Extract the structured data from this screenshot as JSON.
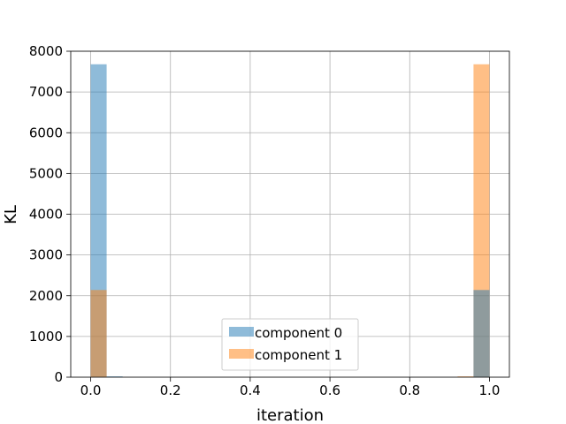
{
  "chart_data": {
    "type": "histogram",
    "title": "",
    "xlabel": "iteration",
    "ylabel": "KL",
    "xlim": [
      -0.05,
      1.05
    ],
    "ylim": [
      0,
      8000
    ],
    "xticks": [
      0.0,
      0.2,
      0.4,
      0.6,
      0.8,
      1.0
    ],
    "xtick_labels": [
      "0.0",
      "0.2",
      "0.4",
      "0.6",
      "0.8",
      "1.0"
    ],
    "yticks": [
      0,
      1000,
      2000,
      3000,
      4000,
      5000,
      6000,
      7000,
      8000
    ],
    "ytick_labels": [
      "0",
      "1000",
      "2000",
      "3000",
      "4000",
      "5000",
      "6000",
      "7000",
      "8000"
    ],
    "grid": true,
    "legend_position": "lower-center",
    "series": [
      {
        "name": "component 0",
        "color": "#1f77b4",
        "alpha": 0.5,
        "bins": [
          {
            "x0": 0.0,
            "x1": 0.04,
            "value": 7680
          },
          {
            "x0": 0.04,
            "x1": 0.08,
            "value": 20
          }
        ]
      },
      {
        "name": "component 1",
        "color": "#ff7f0e",
        "alpha": 0.5,
        "bins": [
          {
            "x0": 0.0,
            "x1": 0.04,
            "value": 2140
          },
          {
            "x0": 0.92,
            "x1": 0.96,
            "value": 20
          },
          {
            "x0": 0.96,
            "x1": 1.0,
            "value": 7680
          }
        ]
      },
      {
        "name": "component 0",
        "color": "#1f77b4",
        "alpha": 0.5,
        "bins": [
          {
            "x0": 0.96,
            "x1": 1.0,
            "value": 2140
          }
        ],
        "legend": false
      }
    ]
  }
}
